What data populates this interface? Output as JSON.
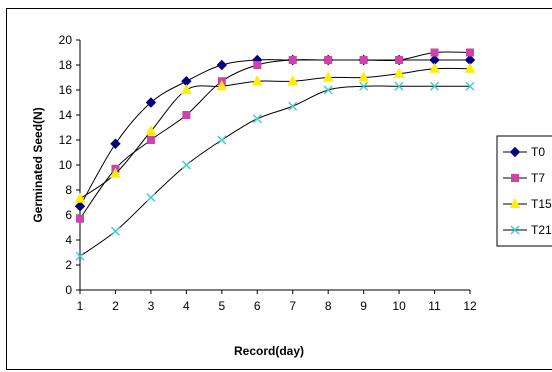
{
  "chart_data": {
    "type": "line",
    "title": "",
    "xlabel": "Record(day)",
    "ylabel": "Germinated Seed(N)",
    "x": [
      1,
      2,
      3,
      4,
      5,
      6,
      7,
      8,
      9,
      10,
      11,
      12
    ],
    "xlim": [
      1,
      12
    ],
    "ylim": [
      0,
      20
    ],
    "yticks": [
      0,
      2,
      4,
      6,
      8,
      10,
      12,
      14,
      16,
      18,
      20
    ],
    "grid": false,
    "legend_position": "right",
    "series": [
      {
        "name": "T0",
        "color": "#000080",
        "marker": "diamond",
        "values": [
          6.7,
          11.7,
          15.0,
          16.7,
          18.0,
          18.4,
          18.4,
          18.4,
          18.4,
          18.4,
          18.4,
          18.4
        ]
      },
      {
        "name": "T7",
        "color": "#cc44aa",
        "marker": "square",
        "values": [
          5.7,
          9.7,
          12.0,
          14.0,
          16.7,
          18.0,
          18.4,
          18.4,
          18.4,
          18.4,
          19.0,
          19.0
        ]
      },
      {
        "name": "T15",
        "color": "#ffee00",
        "marker": "triangle",
        "values": [
          7.3,
          9.3,
          12.7,
          16.0,
          16.3,
          16.7,
          16.7,
          17.0,
          17.0,
          17.3,
          17.7,
          17.7
        ]
      },
      {
        "name": "T21",
        "color": "#44cccc",
        "marker": "x",
        "values": [
          2.7,
          4.7,
          7.4,
          10.0,
          12.0,
          13.7,
          14.7,
          16.0,
          16.3,
          16.3,
          16.3,
          16.3
        ]
      }
    ]
  }
}
